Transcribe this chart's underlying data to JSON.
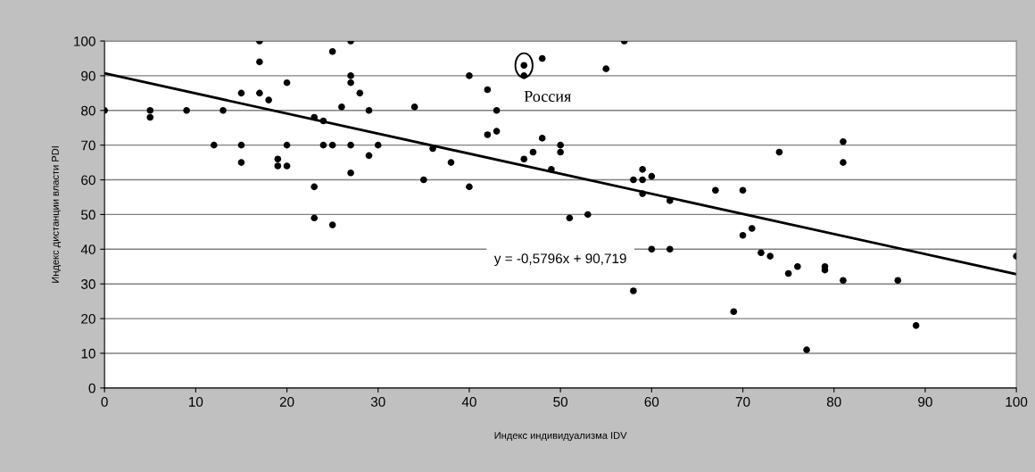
{
  "chart_data": {
    "type": "scatter",
    "xlabel": "Индекс индивидуализма IDV",
    "ylabel": "Индекс дистанции власти PDI",
    "xlim": [
      0,
      100
    ],
    "ylim": [
      0,
      100
    ],
    "xticks": [
      0,
      10,
      20,
      30,
      40,
      50,
      60,
      70,
      80,
      90,
      100
    ],
    "yticks": [
      0,
      10,
      20,
      30,
      40,
      50,
      60,
      70,
      80,
      90,
      100
    ],
    "grid": "y",
    "legend": false,
    "marker": "circle",
    "annotations": [
      {
        "text": "Россия",
        "x": 46,
        "y": 93
      },
      "y = -0,5796x + 90,719"
    ],
    "series": [
      {
        "color": "#000000",
        "x": [
          0,
          5,
          5,
          9,
          12,
          13,
          15,
          15,
          15,
          17,
          17,
          17,
          18,
          19,
          19,
          20,
          20,
          20,
          23,
          23,
          23,
          24,
          24,
          25,
          25,
          25,
          26,
          27,
          27,
          27,
          27,
          27,
          28,
          29,
          29,
          30,
          34,
          35,
          36,
          38,
          40,
          40,
          42,
          42,
          43,
          43,
          46,
          46,
          46,
          47,
          48,
          48,
          49,
          50,
          50,
          51,
          53,
          55,
          57,
          58,
          58,
          59,
          59,
          59,
          60,
          60,
          62,
          62,
          67,
          69,
          70,
          70,
          71,
          72,
          73,
          74,
          75,
          76,
          77,
          79,
          79,
          81,
          81,
          81,
          87,
          89,
          100
        ],
        "values": [
          80,
          80,
          78,
          80,
          70,
          80,
          85,
          70,
          65,
          100,
          94,
          85,
          83,
          66,
          64,
          88,
          70,
          64,
          78,
          58,
          49,
          77,
          70,
          97,
          70,
          47,
          81,
          100,
          90,
          88,
          70,
          62,
          85,
          80,
          67,
          70,
          81,
          60,
          69,
          65,
          90,
          58,
          86,
          73,
          80,
          74,
          93,
          90,
          66,
          68,
          95,
          72,
          63,
          70,
          68,
          49,
          50,
          92,
          100,
          60,
          28,
          63,
          60,
          56,
          61,
          40,
          54,
          40,
          57,
          22,
          57,
          44,
          46,
          39,
          38,
          68,
          33,
          35,
          11,
          35,
          34,
          71,
          65,
          31,
          31,
          18,
          38
        ]
      },
      {
        "type": "line",
        "color": "#000000",
        "marker": "none",
        "x": [
          0,
          100
        ],
        "values": [
          90.7,
          32.8
        ]
      }
    ]
  }
}
